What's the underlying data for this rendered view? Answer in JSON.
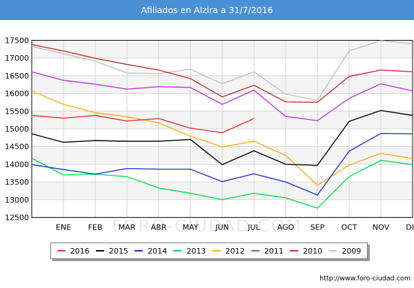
{
  "title": "Afiliados en Alzira a 31/7/2016",
  "watermark": "FORO-CIUDAD.COM",
  "source_url": "http://www.foro-ciudad.com",
  "chart_data": {
    "type": "line",
    "title": "Afiliados en Alzira a 31/7/2016",
    "categories": [
      "",
      "ENE",
      "FEB",
      "MAR",
      "ABR",
      "MAY",
      "JUN",
      "JUL",
      "AGO",
      "SEP",
      "OCT",
      "NOV",
      "DIC"
    ],
    "y_ticks": [
      12500,
      13000,
      13500,
      14000,
      14500,
      15000,
      15500,
      16000,
      16500,
      17000,
      17500
    ],
    "ylim": [
      12500,
      17500
    ],
    "grid": true,
    "legend_position": "bottom",
    "series": [
      {
        "name": "2016",
        "color": "#e03030",
        "values": [
          15380,
          15300,
          15380,
          15220,
          15290,
          15020,
          14890,
          15290,
          null,
          null,
          null,
          null,
          null
        ]
      },
      {
        "name": "2015",
        "color": "#000000",
        "values": [
          14860,
          14620,
          14670,
          14650,
          14650,
          14700,
          13990,
          14380,
          14000,
          13970,
          15210,
          15520,
          15380
        ]
      },
      {
        "name": "2014",
        "color": "#2030d0",
        "values": [
          13990,
          13850,
          13720,
          13880,
          13860,
          13860,
          13510,
          13730,
          13500,
          13130,
          14370,
          14870,
          14860
        ]
      },
      {
        "name": "2013",
        "color": "#00e050",
        "values": [
          14170,
          13700,
          13720,
          13650,
          13330,
          13180,
          13000,
          13180,
          13050,
          12760,
          13650,
          14110,
          13990
        ]
      },
      {
        "name": "2012",
        "color": "#ffaa10",
        "values": [
          16070,
          15690,
          15460,
          15340,
          15170,
          14790,
          14490,
          14650,
          14250,
          13410,
          13970,
          14310,
          14160
        ]
      },
      {
        "name": "2011",
        "color": "#c030e0",
        "values": [
          16610,
          16370,
          16260,
          16120,
          16190,
          16170,
          15690,
          16090,
          15350,
          15230,
          15860,
          16270,
          16070
        ]
      },
      {
        "name": "2010",
        "color": "#c03030",
        "values": [
          17380,
          17200,
          16990,
          16820,
          16660,
          16420,
          15900,
          16230,
          15760,
          15750,
          16480,
          16660,
          16610
        ]
      },
      {
        "name": "2009",
        "color": "#c0c0c0",
        "values": [
          17330,
          17120,
          16910,
          16580,
          16560,
          16680,
          16270,
          16610,
          15980,
          15800,
          17200,
          17490,
          17400
        ]
      }
    ]
  }
}
